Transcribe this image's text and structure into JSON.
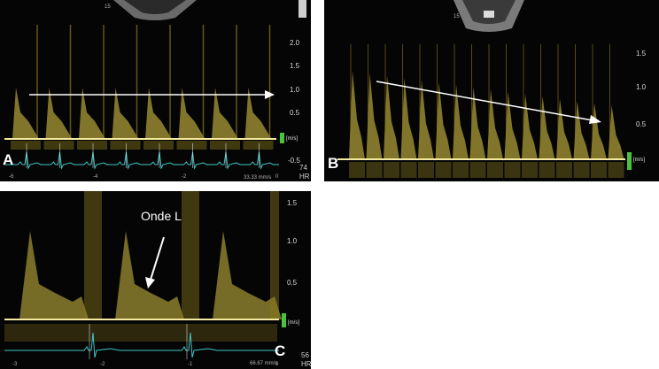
{
  "colors": {
    "doppler": "#e8d24a",
    "doppler_dim": "#8a7a20",
    "baseline": "#f4e9a0",
    "ecg": "#3fc6c6",
    "scale_bar": "#49c43a",
    "arrow": "#ffffff"
  },
  "panels": {
    "a": {
      "label": "A",
      "velocity_ticks": [
        "2.0",
        "1.5",
        "1.0",
        "0.5",
        "-0.5"
      ],
      "unit": "[m/s]",
      "hr_value": "74",
      "hr_label": "HR",
      "speed": "33.33 mm/s",
      "time_ticks": [
        "-6",
        "-4",
        "-2",
        "0"
      ]
    },
    "b": {
      "label": "B",
      "velocity_ticks": [
        "1.5",
        "1.0",
        "0.5"
      ],
      "unit": "[m/s]"
    },
    "c": {
      "label": "C",
      "annotation": "Onde L",
      "velocity_ticks": [
        "1.5",
        "1.0",
        "0.5"
      ],
      "unit": "[m/s]",
      "hr_value": "56",
      "hr_label": "HR",
      "speed": "66.67 mm/s",
      "time_ticks": [
        "-3",
        "-2",
        "-1",
        "0"
      ]
    }
  }
}
